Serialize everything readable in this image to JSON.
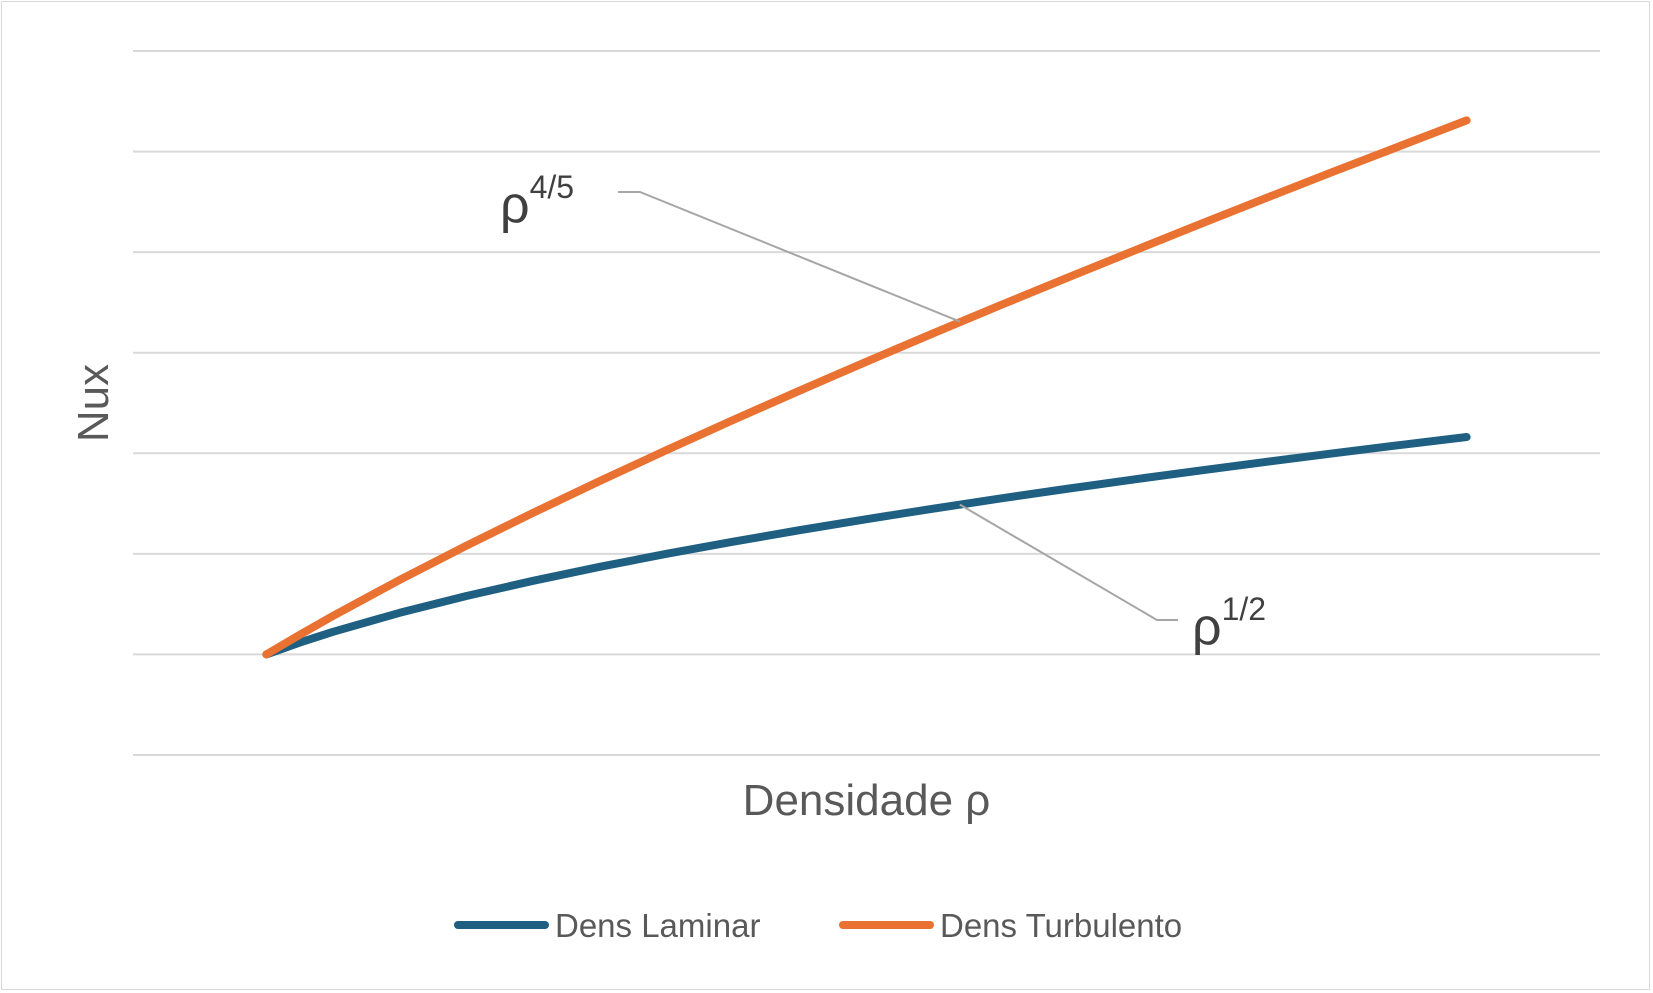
{
  "chart_data": {
    "type": "line",
    "title": "",
    "xlabel": "Densidade ρ",
    "ylabel": "Nux",
    "grid": true,
    "x_ticks_visible": false,
    "y_ticks_visible": false,
    "x": [
      1,
      1.25,
      1.5,
      2,
      2.5,
      3,
      3.5,
      4,
      4.5,
      5,
      5.5,
      6,
      6.5,
      7,
      7.5,
      8,
      8.5,
      9,
      9.5,
      10
    ],
    "xlim": [
      0,
      11
    ],
    "ylim": [
      0,
      7
    ],
    "series": [
      {
        "name": "Dens Laminar",
        "color": "#1f5f82",
        "exponent": "1/2",
        "values": [
          1.0,
          1.118,
          1.225,
          1.414,
          1.581,
          1.732,
          1.871,
          2.0,
          2.121,
          2.236,
          2.345,
          2.449,
          2.55,
          2.646,
          2.739,
          2.828,
          2.915,
          3.0,
          3.082,
          3.162
        ]
      },
      {
        "name": "Dens Turbulento",
        "color": "#e97132",
        "exponent": "4/5",
        "values": [
          1.0,
          1.195,
          1.383,
          1.741,
          2.081,
          2.408,
          2.724,
          3.031,
          3.331,
          3.624,
          3.911,
          4.193,
          4.47,
          4.742,
          5.011,
          5.278,
          5.54,
          5.8,
          6.055,
          6.31
        ]
      }
    ],
    "annotations": [
      {
        "base": "ρ",
        "exponent": "4/5",
        "series": "Dens Turbulento"
      },
      {
        "base": "ρ",
        "exponent": "1/2",
        "series": "Dens Laminar"
      }
    ],
    "legend": {
      "placement": "bottom",
      "items": [
        "Dens Laminar",
        "Dens Turbulento"
      ]
    }
  }
}
